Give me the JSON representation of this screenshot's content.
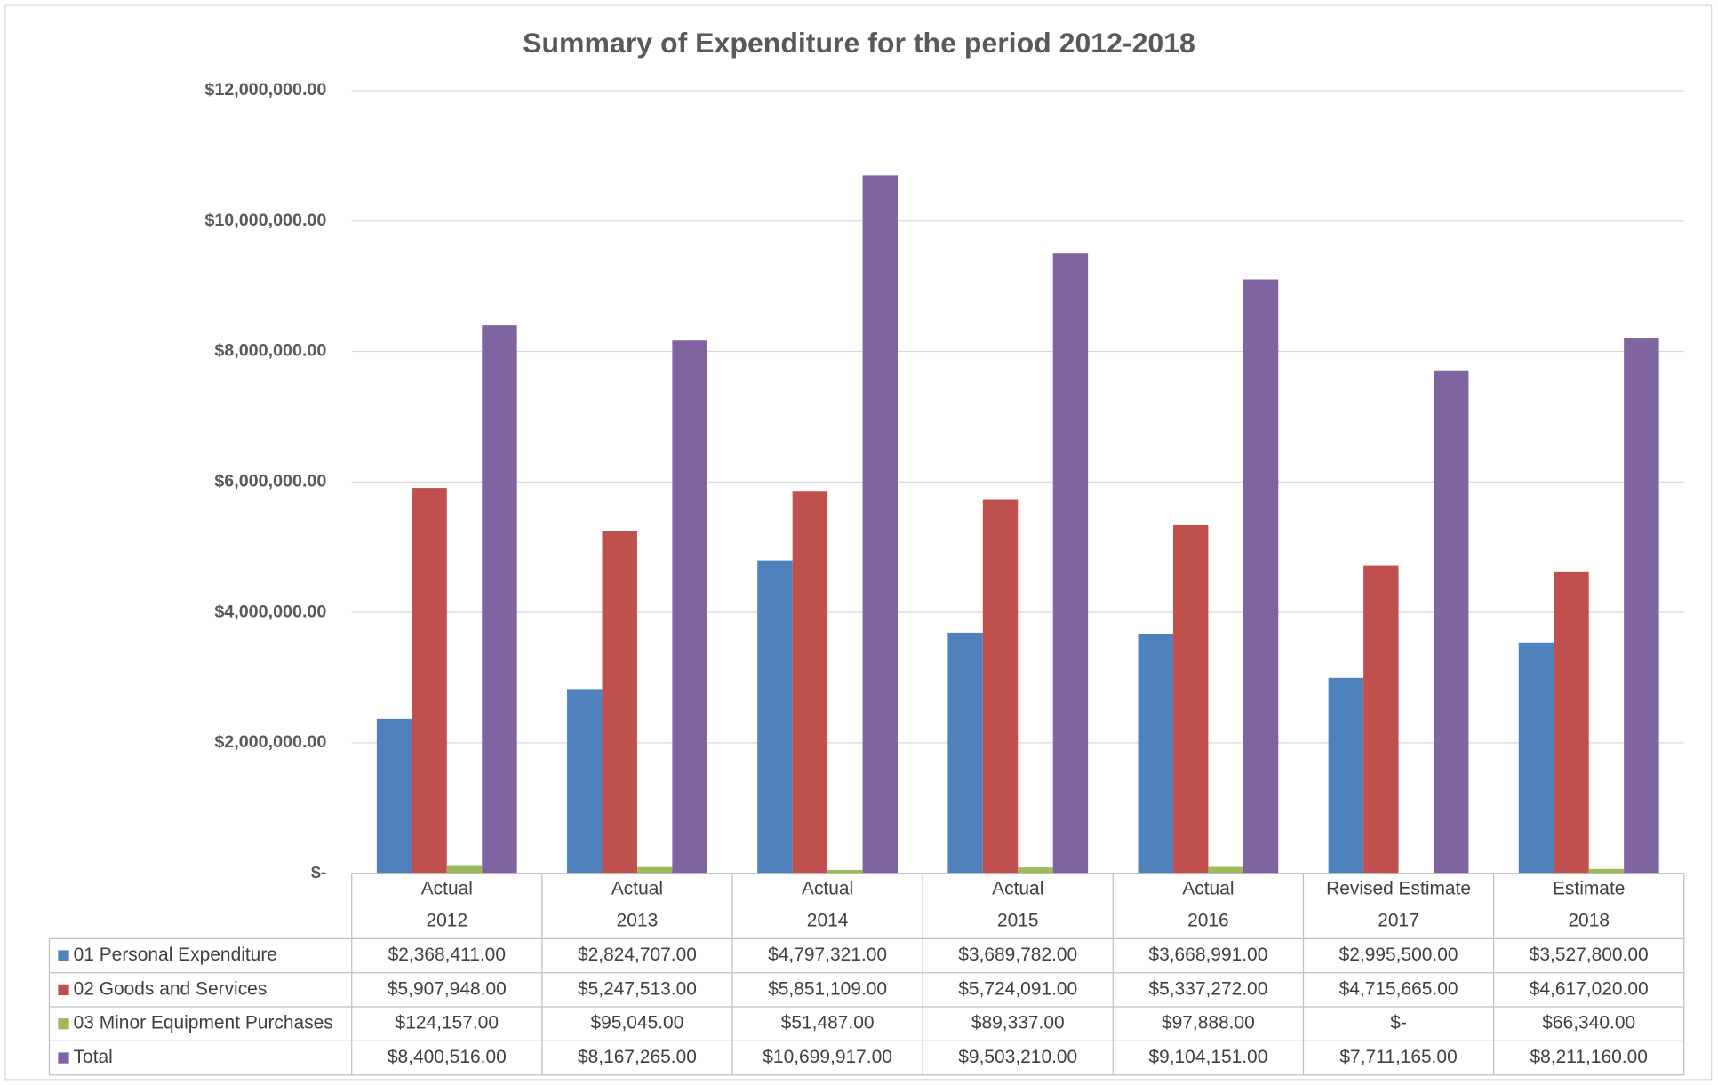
{
  "chart_data": {
    "type": "bar",
    "title": "Summary of Expenditure for the period 2012-2018",
    "categories": [
      [
        "Actual",
        "2012"
      ],
      [
        "Actual",
        "2013"
      ],
      [
        "Actual",
        "2014"
      ],
      [
        "Actual",
        "2015"
      ],
      [
        "Actual",
        "2016"
      ],
      [
        "Revised Estimate",
        "2017"
      ],
      [
        "Estimate",
        "2018"
      ]
    ],
    "series": [
      {
        "name": "01 Personal Expenditure",
        "color": "#4f81bd",
        "values": [
          2368411,
          2824707,
          4797321,
          3689782,
          3668991,
          2995500,
          3527800
        ],
        "value_labels": [
          "$2,368,411.00",
          "$2,824,707.00",
          "$4,797,321.00",
          "$3,689,782.00",
          "$3,668,991.00",
          "$2,995,500.00",
          "$3,527,800.00"
        ]
      },
      {
        "name": "02 Goods and Services",
        "color": "#c0504d",
        "values": [
          5907948,
          5247513,
          5851109,
          5724091,
          5337272,
          4715665,
          4617020
        ],
        "value_labels": [
          "$5,907,948.00",
          "$5,247,513.00",
          "$5,851,109.00",
          "$5,724,091.00",
          "$5,337,272.00",
          "$4,715,665.00",
          "$4,617,020.00"
        ]
      },
      {
        "name": "03 Minor Equipment Purchases",
        "color": "#9bbb59",
        "values": [
          124157,
          95045,
          51487,
          89337,
          97888,
          0,
          66340
        ],
        "value_labels": [
          "$124,157.00",
          "$95,045.00",
          "$51,487.00",
          "$89,337.00",
          "$97,888.00",
          "$-",
          "$66,340.00"
        ]
      },
      {
        "name": "Total",
        "color": "#8064a2",
        "values": [
          8400516,
          8167265,
          10699917,
          9503210,
          9104151,
          7711165,
          8211160
        ],
        "value_labels": [
          "$8,400,516.00",
          "$8,167,265.00",
          "$10,699,917.00",
          "$9,503,210.00",
          "$9,104,151.00",
          "$7,711,165.00",
          "$8,211,160.00"
        ]
      }
    ],
    "ylim": [
      0,
      12000000
    ],
    "yticks": [
      {
        "value": 0,
        "label": "$-"
      },
      {
        "value": 2000000,
        "label": "$2,000,000.00"
      },
      {
        "value": 4000000,
        "label": "$4,000,000.00"
      },
      {
        "value": 6000000,
        "label": "$6,000,000.00"
      },
      {
        "value": 8000000,
        "label": "$8,000,000.00"
      },
      {
        "value": 10000000,
        "label": "$10,000,000.00"
      },
      {
        "value": 12000000,
        "label": "$12,000,000.00"
      }
    ],
    "grid": true
  }
}
